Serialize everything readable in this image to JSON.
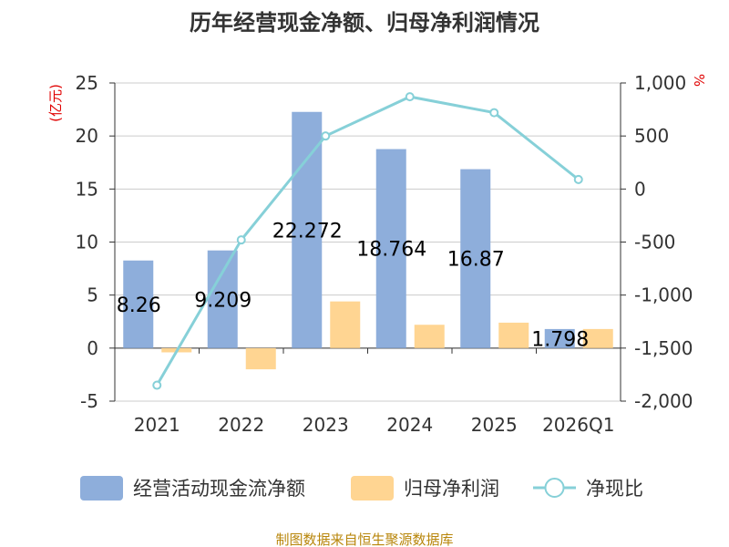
{
  "chart_data": {
    "type": "bar",
    "title": "历年经营现金净额、归母净利润情况",
    "categories": [
      "2021",
      "2022",
      "2023",
      "2024",
      "2025",
      "2026Q1"
    ],
    "left_axis": {
      "unit": "(亿元)",
      "ylim": [
        -5,
        25
      ],
      "ticks": [
        -5,
        0,
        5,
        10,
        15,
        20,
        25
      ]
    },
    "right_axis": {
      "unit": "%",
      "ylim": [
        -2000,
        1000
      ],
      "ticks": [
        "1,000",
        "500",
        "0",
        "-500",
        "-1,000",
        "-1,500",
        "-2,000"
      ],
      "tick_values": [
        1000,
        500,
        0,
        -500,
        -1000,
        -1500,
        -2000
      ]
    },
    "grid": true,
    "legend_position": "bottom",
    "series": [
      {
        "name": "经营活动现金流净额",
        "kind": "bar",
        "axis": "left",
        "color": "#8eaedb",
        "values": [
          8.26,
          9.209,
          22.272,
          18.764,
          16.87,
          1.798
        ],
        "labels": [
          "8.26",
          "9.209",
          "22.272",
          "18.764",
          "16.87",
          "1.798"
        ]
      },
      {
        "name": "归母净利润",
        "kind": "bar",
        "axis": "left",
        "color": "#ffd592",
        "values": [
          -0.4,
          -2.0,
          4.4,
          2.2,
          2.4,
          1.8
        ]
      },
      {
        "name": "净现比",
        "kind": "line",
        "axis": "right",
        "color": "#86d0d8",
        "values": [
          -1850,
          -480,
          500,
          870,
          720,
          90
        ]
      }
    ],
    "source_note": "制图数据来自恒生聚源数据库"
  }
}
